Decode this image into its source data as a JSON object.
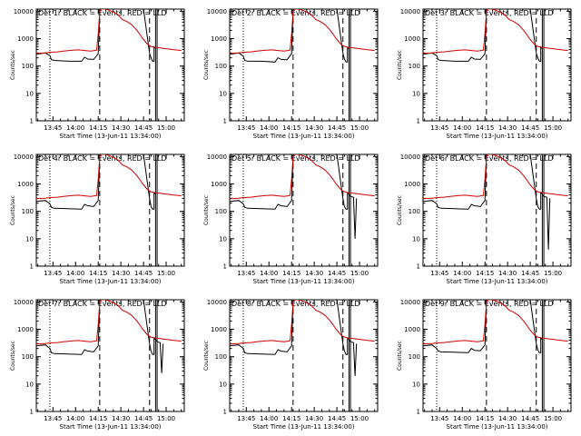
{
  "chart_data": {
    "type": "line",
    "layout": "3x3 grid",
    "shared": {
      "ylabel": "Counts/sec",
      "xlabel": "Start Time (13-Jun-11 13:34:00)",
      "x_tick_labels": [
        "13:45",
        "14:00",
        "14:15",
        "14:30",
        "14:45",
        "15:00"
      ],
      "y_tick_labels": [
        "1",
        "10",
        "100",
        "1000",
        "10000"
      ],
      "y_scale": "log",
      "ylim": [
        1,
        12000
      ],
      "xlim": [
        "13:34",
        "15:12"
      ],
      "series_colors": {
        "events": "#000000",
        "lld": "#d00000"
      },
      "vertical_markers": [
        {
          "time": "13:43",
          "style": "dotted"
        },
        {
          "time": "14:16",
          "style": "dashed"
        },
        {
          "time": "14:49",
          "style": "dashed"
        },
        {
          "time": "14:53",
          "style": "solid"
        },
        {
          "time": "14:54",
          "style": "solid"
        }
      ],
      "lld": {
        "x": [
          "13:34",
          "13:40",
          "13:43",
          "13:48",
          "13:52",
          "13:58",
          "14:02",
          "14:06",
          "14:10",
          "14:14",
          "14:15",
          "14:16",
          "14:17",
          "14:18",
          "14:20",
          "14:24",
          "14:28",
          "14:31",
          "14:34",
          "14:37",
          "14:40",
          "14:42",
          "14:44",
          "14:46",
          "14:48",
          "14:50",
          "14:53",
          "14:56",
          "15:00",
          "15:04",
          "15:08",
          "15:10"
        ],
        "y": [
          290,
          300,
          320,
          330,
          350,
          380,
          390,
          370,
          350,
          380,
          1500,
          10000,
          12000,
          12000,
          12000,
          10000,
          7500,
          5000,
          4200,
          3300,
          2200,
          1600,
          1100,
          800,
          600,
          520,
          480,
          460,
          430,
          400,
          380,
          370
        ]
      }
    },
    "panels": [
      {
        "title": "Det 1r BLACK = Events, RED = LLD",
        "events": {
          "x": [
            "13:34",
            "13:40",
            "13:43",
            "13:44",
            "13:46",
            "13:55",
            "14:04",
            "14:06",
            "14:08",
            "14:12",
            "14:15",
            "14:16",
            "14:17",
            "14:20",
            "14:30",
            "14:45",
            "14:49",
            "14:50",
            "14:51",
            "14:52",
            "14:52",
            "14:53"
          ],
          "y": [
            270,
            300,
            240,
            170,
            160,
            150,
            150,
            210,
            180,
            175,
            280,
            10000,
            12000,
            12000,
            12000,
            12000,
            300,
            200,
            150,
            150,
            500,
            430
          ]
        }
      },
      {
        "title": "Det 2r BLACK = Events, RED = LLD",
        "events": {
          "x": [
            "13:34",
            "13:40",
            "13:43",
            "13:44",
            "13:46",
            "13:55",
            "14:04",
            "14:06",
            "14:08",
            "14:12",
            "14:15",
            "14:16",
            "14:17",
            "14:20",
            "14:30",
            "14:45",
            "14:49",
            "14:50",
            "14:51",
            "14:52",
            "14:52",
            "14:53"
          ],
          "y": [
            270,
            300,
            230,
            160,
            150,
            150,
            140,
            200,
            175,
            170,
            280,
            10000,
            12000,
            12000,
            12000,
            12000,
            300,
            180,
            140,
            140,
            480,
            420
          ]
        }
      },
      {
        "title": "Det 3r BLACK = Events, RED = LLD",
        "events": {
          "x": [
            "13:34",
            "13:40",
            "13:43",
            "13:44",
            "13:46",
            "13:55",
            "14:04",
            "14:06",
            "14:08",
            "14:12",
            "14:15",
            "14:16",
            "14:17",
            "14:20",
            "14:30",
            "14:45",
            "14:49",
            "14:50",
            "14:51",
            "14:52",
            "14:52",
            "14:53"
          ],
          "y": [
            270,
            300,
            240,
            170,
            160,
            150,
            150,
            210,
            180,
            175,
            280,
            10000,
            12000,
            12000,
            12000,
            12000,
            300,
            200,
            150,
            150,
            500,
            430
          ]
        }
      },
      {
        "title": "Det 4r BLACK = Events, RED = LLD",
        "events": {
          "x": [
            "13:34",
            "13:40",
            "13:43",
            "13:44",
            "13:46",
            "13:55",
            "14:04",
            "14:06",
            "14:08",
            "14:12",
            "14:15",
            "14:16",
            "14:17",
            "14:20",
            "14:30",
            "14:45",
            "14:49",
            "14:50",
            "14:51",
            "14:52",
            "14:52",
            "14:53"
          ],
          "y": [
            230,
            250,
            190,
            140,
            130,
            125,
            120,
            180,
            160,
            150,
            250,
            10000,
            12000,
            12000,
            12000,
            12000,
            300,
            150,
            120,
            120,
            480,
            420
          ]
        }
      },
      {
        "title": "Det 5r BLACK = Events, RED = LLD",
        "events": {
          "x": [
            "13:34",
            "13:40",
            "13:43",
            "13:44",
            "13:46",
            "13:55",
            "14:04",
            "14:06",
            "14:08",
            "14:12",
            "14:15",
            "14:16",
            "14:17",
            "14:20",
            "14:30",
            "14:45",
            "14:49",
            "14:50",
            "14:51",
            "14:52",
            "14:52",
            "14:53",
            "14:54",
            "14:56",
            "14:57",
            "14:58"
          ],
          "y": [
            230,
            250,
            190,
            140,
            130,
            125,
            120,
            180,
            160,
            150,
            250,
            10000,
            12000,
            12000,
            12000,
            12000,
            300,
            150,
            120,
            120,
            480,
            420,
            350,
            330,
            10,
            300
          ]
        }
      },
      {
        "title": "Det 6r BLACK = Events, RED = LLD",
        "events": {
          "x": [
            "13:34",
            "13:40",
            "13:43",
            "13:44",
            "13:46",
            "13:55",
            "14:04",
            "14:06",
            "14:08",
            "14:12",
            "14:15",
            "14:16",
            "14:17",
            "14:20",
            "14:30",
            "14:45",
            "14:49",
            "14:50",
            "14:51",
            "14:52",
            "14:52",
            "14:53",
            "14:54",
            "14:56",
            "14:57",
            "14:58"
          ],
          "y": [
            230,
            250,
            190,
            140,
            130,
            125,
            120,
            180,
            160,
            150,
            250,
            10000,
            12000,
            12000,
            12000,
            12000,
            300,
            150,
            120,
            120,
            480,
            420,
            350,
            330,
            4,
            300
          ]
        }
      },
      {
        "title": "Det 7r BLACK = Events, RED = LLD",
        "events": {
          "x": [
            "13:34",
            "13:40",
            "13:43",
            "13:44",
            "13:46",
            "13:55",
            "14:04",
            "14:06",
            "14:08",
            "14:12",
            "14:15",
            "14:16",
            "14:17",
            "14:20",
            "14:30",
            "14:45",
            "14:49",
            "14:50",
            "14:51",
            "14:52",
            "14:52",
            "14:53",
            "14:54",
            "14:56",
            "14:57",
            "14:58"
          ],
          "y": [
            250,
            270,
            200,
            140,
            130,
            125,
            120,
            180,
            160,
            150,
            250,
            10000,
            12000,
            12000,
            12000,
            12000,
            300,
            160,
            120,
            120,
            480,
            420,
            350,
            330,
            25,
            300
          ]
        }
      },
      {
        "title": "Det 8r BLACK = Events, RED = LLD",
        "events": {
          "x": [
            "13:34",
            "13:40",
            "13:43",
            "13:44",
            "13:46",
            "13:55",
            "14:04",
            "14:06",
            "14:08",
            "14:12",
            "14:15",
            "14:16",
            "14:17",
            "14:20",
            "14:30",
            "14:45",
            "14:49",
            "14:50",
            "14:51",
            "14:52",
            "14:52",
            "14:53",
            "14:54",
            "14:56",
            "14:57",
            "14:58"
          ],
          "y": [
            250,
            270,
            200,
            140,
            130,
            125,
            120,
            180,
            160,
            150,
            250,
            10000,
            12000,
            12000,
            12000,
            12000,
            300,
            160,
            120,
            120,
            480,
            420,
            350,
            330,
            20,
            300
          ]
        }
      },
      {
        "title": "Det 9r BLACK = Events, RED = LLD",
        "events": {
          "x": [
            "13:34",
            "13:40",
            "13:43",
            "13:44",
            "13:46",
            "13:55",
            "14:04",
            "14:06",
            "14:08",
            "14:12",
            "14:15",
            "14:16",
            "14:17",
            "14:20",
            "14:30",
            "14:45",
            "14:49",
            "14:50",
            "14:51",
            "14:52",
            "14:52",
            "14:53"
          ],
          "y": [
            250,
            270,
            200,
            160,
            150,
            145,
            140,
            200,
            170,
            165,
            270,
            10000,
            12000,
            12000,
            12000,
            12000,
            300,
            180,
            140,
            140,
            480,
            420
          ]
        }
      }
    ]
  }
}
